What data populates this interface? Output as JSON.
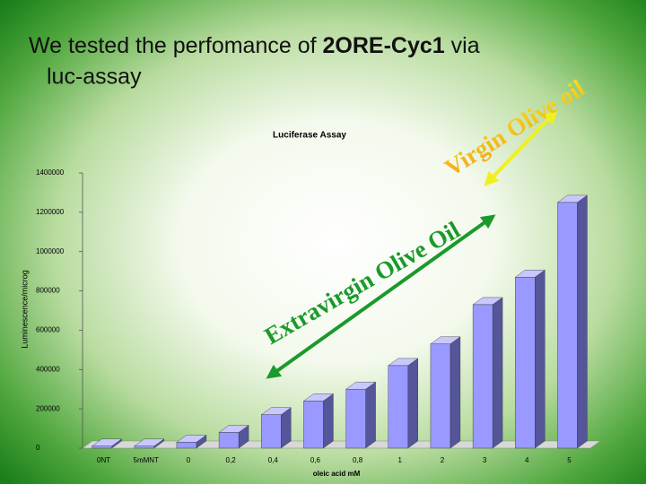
{
  "slide": {
    "title_start": "We tested the perfomance of",
    "title_bold": "2ORE-Cyc1",
    "title_end": "via",
    "title_line2": "luc-assay"
  },
  "chart_data": {
    "type": "bar",
    "title": "Luciferase Assay",
    "x_label": "oleic acid mM",
    "y_label": "Luminescence/microg",
    "categories": [
      "0NT",
      "5mMNT",
      "0",
      "0,2",
      "0,4",
      "0,6",
      "0,8",
      "1",
      "2",
      "3",
      "4",
      "5"
    ],
    "values": [
      10000,
      10000,
      30000,
      80000,
      170000,
      240000,
      300000,
      420000,
      530000,
      730000,
      870000,
      1250000
    ],
    "color": "#9999ff",
    "ylim": [
      0,
      1400000
    ],
    "yticks": [
      0,
      200000,
      400000,
      600000,
      800000,
      1000000,
      1200000,
      1400000
    ],
    "annotations": [
      "Virgin Olive oil",
      "Extravirgin Olive Oil"
    ]
  }
}
